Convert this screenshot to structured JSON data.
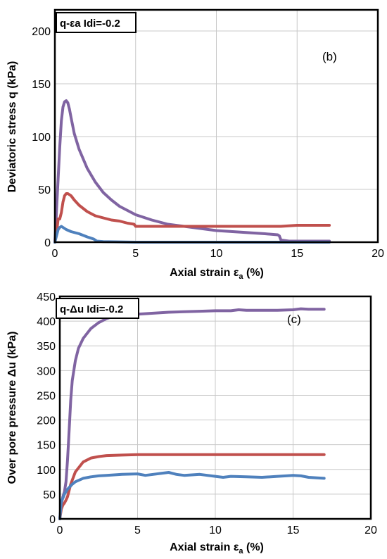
{
  "chart_data": [
    {
      "type": "line",
      "title": "q-εa Idi=-0.2",
      "panel_label": "(b)",
      "xlabel": "Axial strain εa (%)",
      "xlabel_main": "Axial strain ε",
      "xlabel_sub": "a",
      "xlabel_tail": " (%)",
      "ylabel": "Deviatoric stress q (kPa)",
      "xlim": [
        0,
        20
      ],
      "ylim": [
        0,
        220
      ],
      "xticks": [
        0,
        5,
        10,
        15,
        20
      ],
      "yticks": [
        0,
        50,
        100,
        150,
        200
      ],
      "grid": true,
      "series": [
        {
          "color": "#8064A2",
          "x": [
            0,
            0.05,
            0.1,
            0.2,
            0.3,
            0.4,
            0.5,
            0.6,
            0.7,
            0.8,
            0.9,
            1.0,
            1.2,
            1.5,
            2.0,
            2.5,
            3.0,
            3.5,
            4.0,
            5.0,
            6.0,
            7.0,
            8.0,
            9.0,
            10.0,
            11.0,
            12.0,
            13.0,
            13.8,
            13.9,
            14.0,
            14.5,
            15.0,
            16.0,
            17.0
          ],
          "y": [
            0,
            12,
            30,
            60,
            90,
            115,
            128,
            133,
            134,
            132,
            126,
            118,
            103,
            88,
            70,
            57,
            47,
            40,
            34,
            26,
            21,
            17,
            15,
            13,
            11,
            10,
            9,
            8,
            7,
            6,
            2,
            1,
            1,
            1,
            1
          ]
        },
        {
          "color": "#C0504D",
          "x": [
            0,
            0.1,
            0.2,
            0.3,
            0.4,
            0.5,
            0.6,
            0.7,
            0.8,
            0.9,
            1.0,
            1.2,
            1.5,
            2.0,
            2.5,
            3.0,
            3.5,
            4.0,
            4.5,
            4.9,
            5.0,
            6.0,
            7.0,
            8.0,
            10.0,
            12.0,
            14.0,
            15.0,
            17.0
          ],
          "y": [
            0,
            8,
            22,
            22,
            28,
            38,
            44,
            46,
            46,
            45,
            44,
            40,
            35,
            29,
            25,
            23,
            21,
            20,
            18,
            17,
            15,
            15,
            15,
            15,
            15,
            15,
            15,
            16,
            16
          ]
        },
        {
          "color": "#4F81BD",
          "x": [
            0,
            0.1,
            0.2,
            0.3,
            0.4,
            0.5,
            0.7,
            1.0,
            1.5,
            2.0,
            2.4,
            2.6,
            3.0,
            5.0,
            8.0,
            10.0,
            12.0,
            13.8,
            14.0,
            15.0,
            17.0
          ],
          "y": [
            0,
            6,
            12,
            14,
            15,
            14,
            12,
            10,
            8,
            5,
            3,
            1,
            0.5,
            0,
            0,
            0,
            0,
            0,
            0,
            0,
            0
          ]
        }
      ]
    },
    {
      "type": "line",
      "title": "q-Δu Idi=-0.2",
      "panel_label": "(c)",
      "xlabel": "Axial strain εa (%)",
      "xlabel_main": "Axial strain ε",
      "xlabel_sub": "a",
      "xlabel_tail": " (%)",
      "ylabel": "Over pore pressure Δu (kPa)",
      "xlim": [
        0,
        20
      ],
      "ylim": [
        0,
        450
      ],
      "xticks": [
        0,
        5,
        10,
        15,
        20
      ],
      "yticks": [
        0,
        50,
        100,
        150,
        200,
        250,
        300,
        350,
        400,
        450
      ],
      "grid": true,
      "series": [
        {
          "color": "#8064A2",
          "x": [
            0,
            0.1,
            0.2,
            0.3,
            0.4,
            0.5,
            0.6,
            0.7,
            0.8,
            1.0,
            1.2,
            1.5,
            2.0,
            2.5,
            3.0,
            3.5,
            4.0,
            5.0,
            6.0,
            7.0,
            8.0,
            9.0,
            10.0,
            11.0,
            11.5,
            12.0,
            13.0,
            14.0,
            15.0,
            15.5,
            16.0,
            17.0
          ],
          "y": [
            0,
            30,
            45,
            55,
            75,
            120,
            180,
            240,
            280,
            320,
            345,
            365,
            385,
            397,
            405,
            410,
            412,
            414,
            416,
            418,
            419,
            420,
            421,
            421,
            423,
            422,
            422,
            422,
            423,
            425,
            424,
            424
          ]
        },
        {
          "color": "#C0504D",
          "x": [
            0,
            0.1,
            0.2,
            0.3,
            0.4,
            0.5,
            0.7,
            1.0,
            1.5,
            2.0,
            2.5,
            3.0,
            4.0,
            5.0,
            6.0,
            8.0,
            10.0,
            12.0,
            14.0,
            16.0,
            17.0
          ],
          "y": [
            0,
            20,
            28,
            32,
            38,
            45,
            70,
            95,
            115,
            123,
            126,
            128,
            129,
            130,
            130,
            130,
            130,
            130,
            130,
            130,
            130
          ]
        },
        {
          "color": "#4F81BD",
          "x": [
            0,
            0.1,
            0.2,
            0.3,
            0.5,
            0.8,
            1.0,
            1.5,
            2.0,
            2.5,
            3.0,
            4.0,
            5.0,
            5.5,
            6.0,
            6.5,
            7.0,
            7.5,
            8.0,
            9.0,
            10.0,
            10.5,
            11.0,
            12.0,
            13.0,
            14.0,
            15.0,
            15.5,
            16.0,
            17.0
          ],
          "y": [
            0,
            35,
            42,
            50,
            60,
            70,
            75,
            82,
            85,
            87,
            88,
            90,
            91,
            88,
            90,
            92,
            94,
            90,
            88,
            90,
            86,
            84,
            86,
            85,
            84,
            86,
            88,
            87,
            84,
            82
          ]
        }
      ]
    }
  ]
}
